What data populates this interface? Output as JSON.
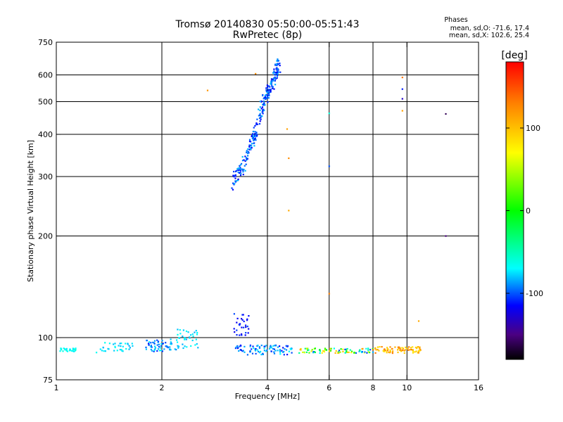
{
  "header": {
    "title_line1": "Tromsø 20140830 05:50:00-05:51:43",
    "title_line2": "RwPretec (8p)"
  },
  "phases": {
    "title": "Phases",
    "line_o": "mean, sd,O: -71.6, 17.4",
    "line_x": "mean, sd,X: 102.6, 25.4"
  },
  "colorbar": {
    "unit": "[deg]",
    "range": [
      -180,
      180
    ],
    "ticks": [
      {
        "value": 100,
        "label": "100"
      },
      {
        "value": 0,
        "label": "0"
      },
      {
        "value": -100,
        "label": "-100"
      }
    ],
    "stops": [
      {
        "value": -180,
        "color": "#000000"
      },
      {
        "value": -150,
        "color": "#4b0082"
      },
      {
        "value": -115,
        "color": "#0000ff"
      },
      {
        "value": -70,
        "color": "#00ffff"
      },
      {
        "value": 0,
        "color": "#00ff00"
      },
      {
        "value": 70,
        "color": "#ffff00"
      },
      {
        "value": 130,
        "color": "#ff8000"
      },
      {
        "value": 180,
        "color": "#ff0000"
      }
    ]
  },
  "chart_data": {
    "type": "scatter",
    "xlabel": "Frequency [MHz]",
    "ylabel": "Stationary phase Virtual Height [km]",
    "xscale": "log",
    "yscale": "log",
    "xlim": [
      1,
      16
    ],
    "ylim": [
      75,
      750
    ],
    "xticks": [
      {
        "value": 1,
        "label": "1"
      },
      {
        "value": 2,
        "label": "2"
      },
      {
        "value": 4,
        "label": "4"
      },
      {
        "value": 6,
        "label": "6"
      },
      {
        "value": 8,
        "label": "8"
      },
      {
        "value": 10,
        "label": "10"
      },
      {
        "value": 16,
        "label": "16"
      }
    ],
    "yticks": [
      {
        "value": 75,
        "label": "75"
      },
      {
        "value": 100,
        "label": "100"
      },
      {
        "value": 200,
        "label": "200"
      },
      {
        "value": 300,
        "label": "300"
      },
      {
        "value": 400,
        "label": "400"
      },
      {
        "value": 500,
        "label": "500"
      },
      {
        "value": 600,
        "label": "600"
      },
      {
        "value": 750,
        "label": "750"
      }
    ],
    "xgrid": [
      2,
      4,
      6,
      8,
      10
    ],
    "ygrid": [
      100,
      200,
      300,
      400,
      500,
      600
    ],
    "clusters": [
      {
        "name": "E-layer 1.0-1.15 MHz",
        "f": [
          1.02,
          1.14
        ],
        "h": [
          91,
          93
        ],
        "phase": [
          -75,
          -60
        ],
        "n": 30
      },
      {
        "name": "E-layer 1.3-1.65 MHz",
        "f": [
          1.3,
          1.65
        ],
        "h": [
          90,
          97
        ],
        "phase": [
          -85,
          -65
        ],
        "n": 35
      },
      {
        "name": "E-layer 1.8-2.2 MHz",
        "f": [
          1.8,
          2.2
        ],
        "h": [
          91,
          99
        ],
        "phase": [
          -110,
          -70
        ],
        "n": 60
      },
      {
        "name": "E-layer 2.2-2.55 MHz",
        "f": [
          2.2,
          2.55
        ],
        "h": [
          93,
          106
        ],
        "phase": [
          -85,
          -65
        ],
        "n": 40
      },
      {
        "name": "Es 3.2-3.55 MHz",
        "f": [
          3.2,
          3.55
        ],
        "h": [
          100,
          118
        ],
        "phase": [
          -125,
          -100
        ],
        "n": 30
      },
      {
        "name": "Low 3.2-4.7 MHz",
        "f": [
          3.2,
          4.7
        ],
        "h": [
          89,
          95
        ],
        "phase": [
          -115,
          -70
        ],
        "n": 90
      },
      {
        "name": "Low 4.9-8 MHz",
        "f": [
          4.9,
          8.0
        ],
        "h": [
          90,
          93
        ],
        "phase": [
          -110,
          120
        ],
        "n": 90
      },
      {
        "name": "Low 8-11 MHz",
        "f": [
          8.0,
          11.0
        ],
        "h": [
          90,
          94
        ],
        "phase": [
          80,
          135
        ],
        "n": 80
      }
    ],
    "trace": {
      "name": "F-layer trace 3.15-4.35 MHz",
      "points": [
        [
          3.15,
          285
        ],
        [
          3.4,
          320
        ],
        [
          3.6,
          375
        ],
        [
          3.75,
          430
        ],
        [
          3.9,
          500
        ],
        [
          4.05,
          540
        ],
        [
          4.2,
          600
        ],
        [
          4.3,
          640
        ]
      ],
      "spread": 0.05,
      "phase": [
        -120,
        -80
      ],
      "n": 260
    },
    "outliers": [
      {
        "f": 2.7,
        "h": 540,
        "phase": 120
      },
      {
        "f": 3.7,
        "h": 605,
        "phase": 125
      },
      {
        "f": 4.6,
        "h": 340,
        "phase": 125
      },
      {
        "f": 4.6,
        "h": 238,
        "phase": 110
      },
      {
        "f": 4.55,
        "h": 415,
        "phase": 115
      },
      {
        "f": 6.0,
        "h": 462,
        "phase": -60
      },
      {
        "f": 6.0,
        "h": 322,
        "phase": -100
      },
      {
        "f": 6.0,
        "h": 135,
        "phase": 130
      },
      {
        "f": 9.7,
        "h": 590,
        "phase": 135
      },
      {
        "f": 9.7,
        "h": 545,
        "phase": -110
      },
      {
        "f": 9.7,
        "h": 510,
        "phase": -130
      },
      {
        "f": 9.7,
        "h": 470,
        "phase": 115
      },
      {
        "f": 10.8,
        "h": 112,
        "phase": 110
      },
      {
        "f": 12.9,
        "h": 460,
        "phase": -160
      },
      {
        "f": 12.9,
        "h": 200,
        "phase": -150
      }
    ]
  }
}
